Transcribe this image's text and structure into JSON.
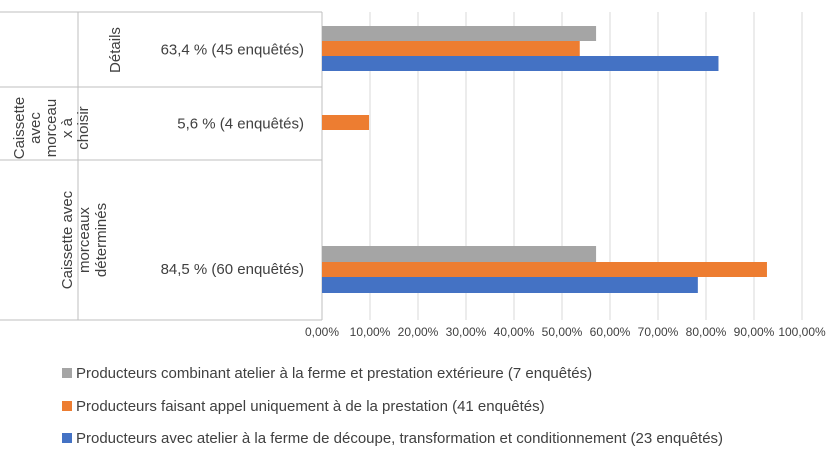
{
  "colors": {
    "grid": "#d9d9d9",
    "axis": "#bfbfbf",
    "text": "#404040"
  },
  "chart_data": {
    "type": "bar",
    "orientation": "horizontal",
    "title": "",
    "xlabel": "",
    "ylabel": "",
    "xlim": [
      0,
      100
    ],
    "grid": true,
    "legend_position": "bottom",
    "x_ticks": [
      "0,00%",
      "10,00%",
      "20,00%",
      "30,00%",
      "40,00%",
      "50,00%",
      "60,00%",
      "70,00%",
      "80,00%",
      "90,00%",
      "100,00%"
    ],
    "groups": [
      {
        "name": "Détails",
        "sublabel": "63,4 % (45 enquêtés)",
        "values": {
          "combinant": 57.1,
          "prestation": 53.7,
          "atelier": 82.6
        }
      },
      {
        "name": "Caissette avec morceaux à choisir",
        "name_lines": [
          "Caissette",
          "avec",
          "morceau",
          "x à",
          "choisir"
        ],
        "sublabel": "5,6 % (4 enquêtés)",
        "values": {
          "combinant": 0,
          "prestation": 9.8,
          "atelier": 0
        }
      },
      {
        "name": "Caissette avec morceaux déterminés",
        "name_lines": [
          "Caissette avec",
          "morceaux",
          "déterminés"
        ],
        "sublabel": "84,5 % (60 enquêtés)",
        "values": {
          "combinant": 57.1,
          "prestation": 92.7,
          "atelier": 78.3
        }
      }
    ],
    "series": [
      {
        "key": "combinant",
        "name": "Producteurs combinant atelier à la ferme et prestation extérieure (7 enquêtés)",
        "color": "#a5a5a5"
      },
      {
        "key": "prestation",
        "name": "Producteurs faisant appel uniquement à de la prestation (41 enquêtés)",
        "color": "#ed7d31"
      },
      {
        "key": "atelier",
        "name": "Producteurs avec atelier à la ferme de découpe, transformation et conditionnement (23 enquêtés)",
        "color": "#4472c4"
      }
    ]
  }
}
